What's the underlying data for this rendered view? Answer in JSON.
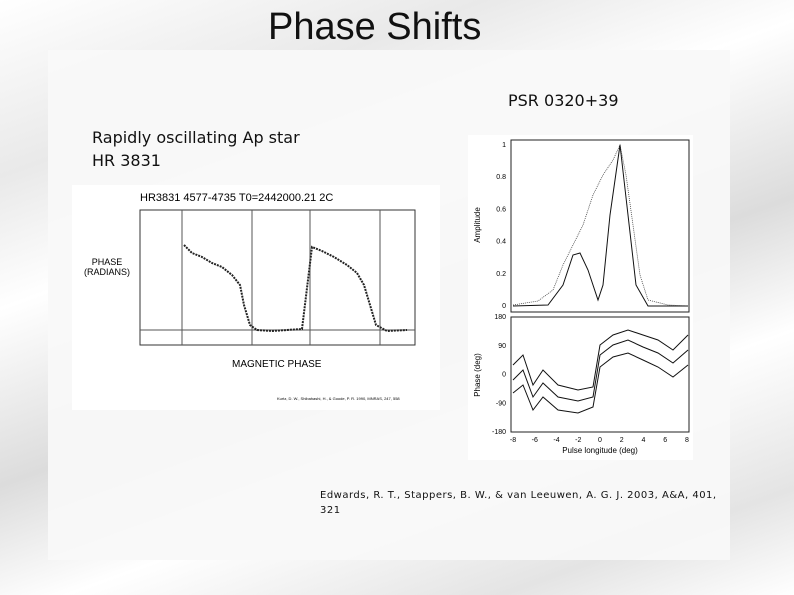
{
  "title": "Phase Shifts",
  "left": {
    "caption": [
      "Rapidly oscillating Ap star",
      "HR 3831"
    ],
    "figure": {
      "header": "HR3831  4577-4735  T0=2442000.21  2C",
      "ylabel": [
        "PHASE",
        "(RADIANS)"
      ],
      "xlabel": "MAGNETIC PHASE",
      "credit": "Kurtz, D. W., Shibahashi, H., & Goode, P. R. 1990, MNRAS, 247, 558"
    }
  },
  "right": {
    "caption": "PSR 0320+39",
    "figure": {
      "top": {
        "ylabel": "Amplitude",
        "yticks": [
          0,
          0.2,
          0.4,
          0.6,
          0.8,
          1
        ]
      },
      "bottom": {
        "ylabel": "Phase (deg)",
        "yticks": [
          -180,
          -90,
          0,
          90,
          180
        ]
      },
      "xticks": [
        -8,
        -6,
        -4,
        -2,
        0,
        2,
        4,
        6,
        8
      ],
      "xlabel": "Pulse longitude (deg)"
    },
    "reference": [
      "Edwards, R. T., Stappers, B. W., & van Leeuwen, A. G. J. 2003, A&A, 401,",
      "321"
    ]
  }
}
